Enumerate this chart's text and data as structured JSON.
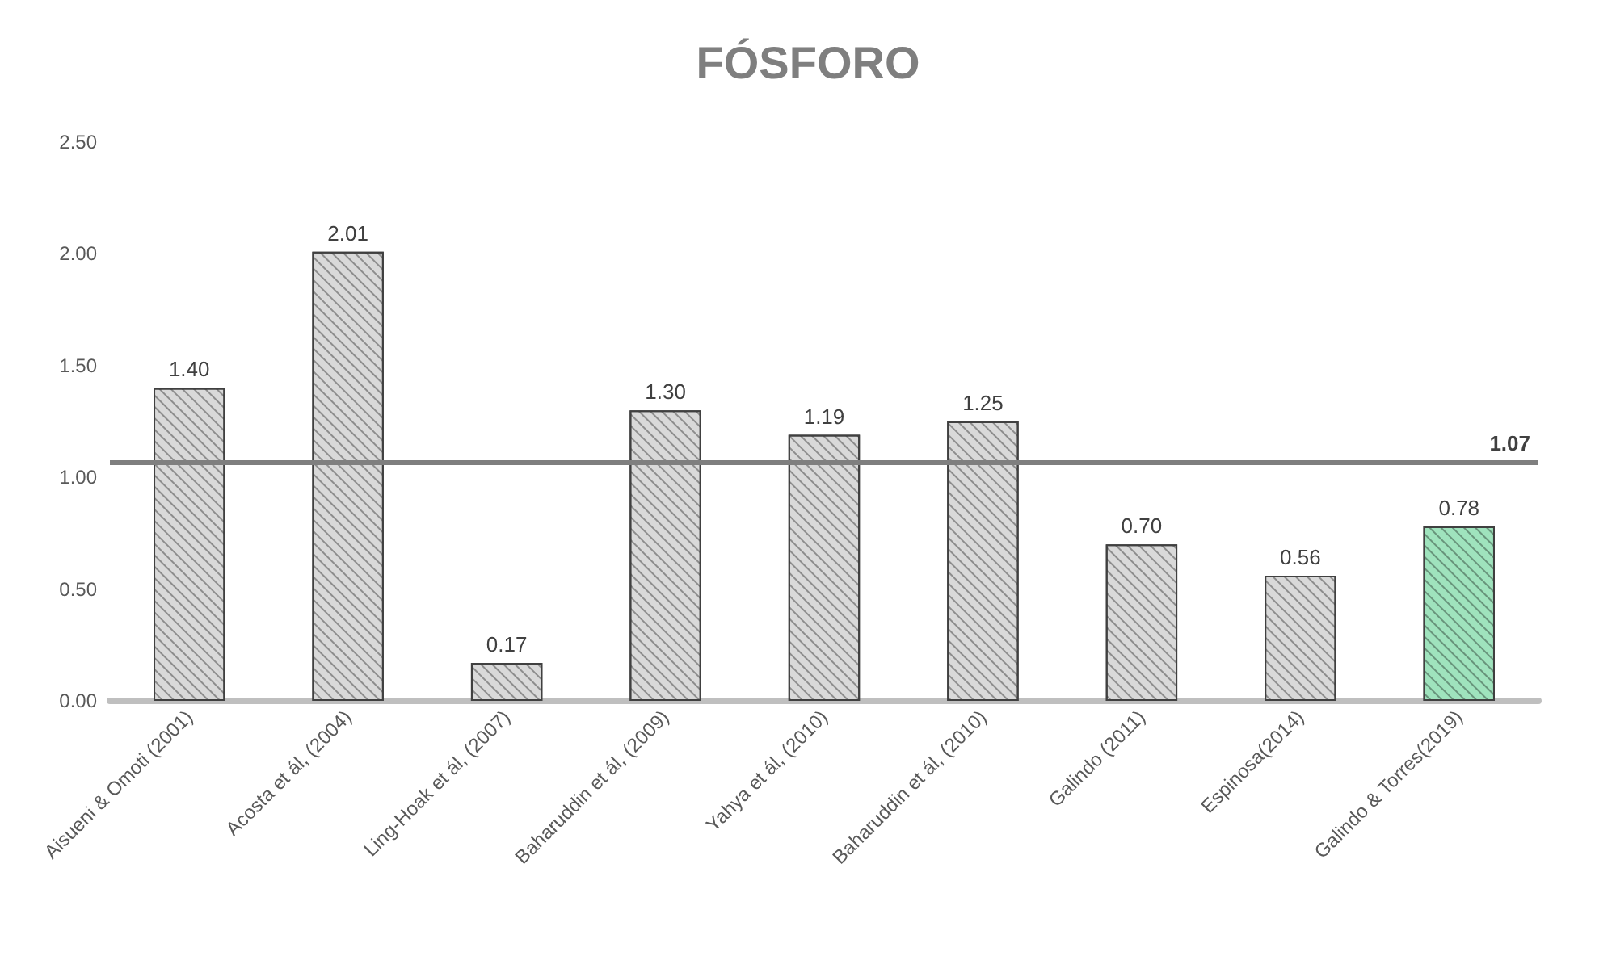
{
  "chart_data": {
    "type": "bar",
    "title": "FÓSFORO",
    "categories": [
      "Aisueni & Omoti (2001)",
      "Acosta et ál, (2004)",
      "Ling-Hoak et ál, (2007)",
      "Baharuddin et ál, (2009)",
      "Yahya et ál, (2010)",
      "Baharuddin et ál, (2010)",
      "Galindo (2011)",
      "Espinosa(2014)",
      "Galindo & Torres(2019)"
    ],
    "values": [
      1.4,
      2.01,
      0.17,
      1.3,
      1.19,
      1.25,
      0.7,
      0.56,
      0.78
    ],
    "colors": [
      "#d9d9d9",
      "#d9d9d9",
      "#d9d9d9",
      "#d9d9d9",
      "#d9d9d9",
      "#d9d9d9",
      "#d9d9d9",
      "#d9d9d9",
      "#9fe3bd"
    ],
    "value_labels": [
      "1.40",
      "2.01",
      "0.17",
      "1.30",
      "1.19",
      "1.25",
      "0.70",
      "0.56",
      "0.78"
    ],
    "ylim": [
      0,
      2.5
    ],
    "yticks": [
      {
        "value": 0,
        "label": "0.00"
      },
      {
        "value": 0.5,
        "label": "0.50"
      },
      {
        "value": 1,
        "label": "1.00"
      },
      {
        "value": 1.5,
        "label": "1.50"
      },
      {
        "value": 2,
        "label": "2.00"
      },
      {
        "value": 2.5,
        "label": "2.50"
      }
    ],
    "ref_lines": [
      {
        "axis": "y",
        "value": 1.07,
        "label": "1.07",
        "color": "#7f7f7f"
      }
    ],
    "grid": false
  }
}
